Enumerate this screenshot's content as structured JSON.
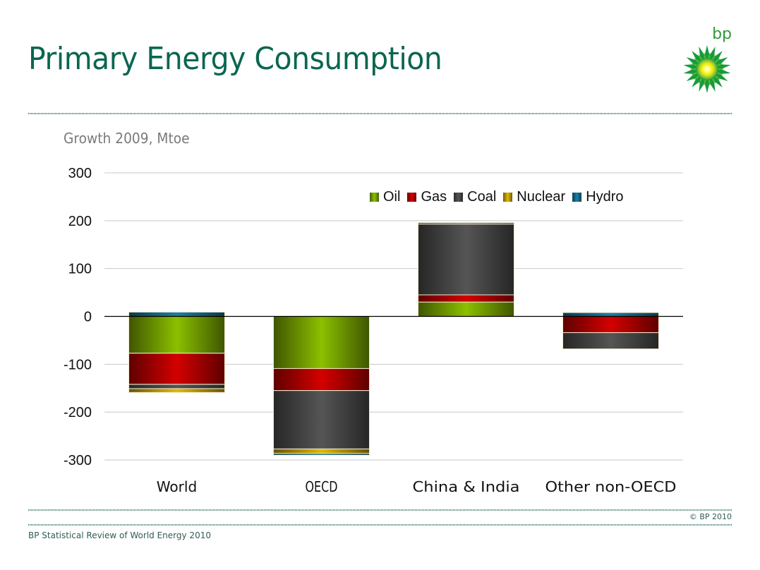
{
  "header": {
    "title": "Primary Energy Consumption",
    "logo_text": "bp",
    "brand_color": "#0a6650"
  },
  "footer": {
    "source": "BP Statistical Review of World Energy 2010",
    "copyright": "© BP 2010"
  },
  "chart_data": {
    "type": "bar",
    "stacked": true,
    "title": "Growth 2009, Mtoe",
    "xlabel": "",
    "ylabel": "",
    "ylim": [
      -300,
      300
    ],
    "yticks": [
      300,
      200,
      100,
      0,
      -100,
      -200,
      -300
    ],
    "grid": true,
    "legend_position": "top-right",
    "categories": [
      "World",
      "OECD",
      "China & India",
      "Other non-OECD"
    ],
    "series": [
      {
        "name": "Oil",
        "color": "#8cc000",
        "values": [
          -77,
          -109,
          30,
          0
        ]
      },
      {
        "name": "Gas",
        "color": "#d40000",
        "values": [
          -65,
          -46,
          15,
          -34
        ]
      },
      {
        "name": "Coal",
        "color": "#555555",
        "values": [
          -9,
          -122,
          148,
          -34
        ]
      },
      {
        "name": "Nuclear",
        "color": "#e0b800",
        "values": [
          -8,
          -9,
          0,
          0
        ]
      },
      {
        "name": "Hydro",
        "color": "#1a7fa6",
        "values": [
          9,
          -4,
          3,
          8
        ]
      }
    ]
  }
}
